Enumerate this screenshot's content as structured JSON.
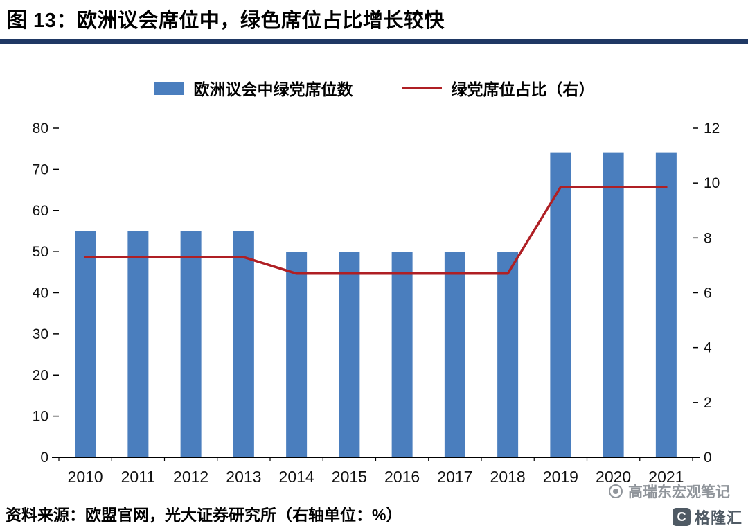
{
  "title": "图 13：欧洲议会席位中，绿色席位占比增长较快",
  "legend": {
    "bars": "欧洲议会中绿党席位数",
    "line": "绿党席位占比（右）"
  },
  "footer": {
    "source": "资料来源：欧盟官网，光大证券研究所（右轴单位：%）"
  },
  "watermark": {
    "text": "高瑞东宏观笔记",
    "logo_text": "格隆汇",
    "logo_glyph": "C"
  },
  "colors": {
    "bar": "#4A7EBE",
    "line": "#AF1F24",
    "title_rule": "#1F3864",
    "axis": "#000000"
  },
  "chart_data": {
    "type": "bar",
    "subtype": "bar+line-combo",
    "categories": [
      "2010",
      "2011",
      "2012",
      "2013",
      "2014",
      "2015",
      "2016",
      "2017",
      "2018",
      "2019",
      "2020",
      "2021"
    ],
    "series": [
      {
        "name": "欧洲议会中绿党席位数",
        "type": "bar",
        "axis": "left",
        "values": [
          55,
          55,
          55,
          55,
          50,
          50,
          50,
          50,
          50,
          74,
          74,
          74
        ]
      },
      {
        "name": "绿党席位占比（右）",
        "type": "line",
        "axis": "right",
        "values": [
          7.3,
          7.3,
          7.3,
          7.3,
          6.7,
          6.7,
          6.7,
          6.7,
          6.7,
          9.85,
          9.85,
          9.85
        ]
      }
    ],
    "left_axis": {
      "min": 0,
      "max": 80,
      "ticks": [
        0,
        10,
        20,
        30,
        40,
        50,
        60,
        70,
        80
      ]
    },
    "right_axis": {
      "min": 0,
      "max": 12,
      "ticks": [
        0,
        2,
        4,
        6,
        8,
        10,
        12
      ]
    },
    "grid": false,
    "legend_position": "top"
  }
}
